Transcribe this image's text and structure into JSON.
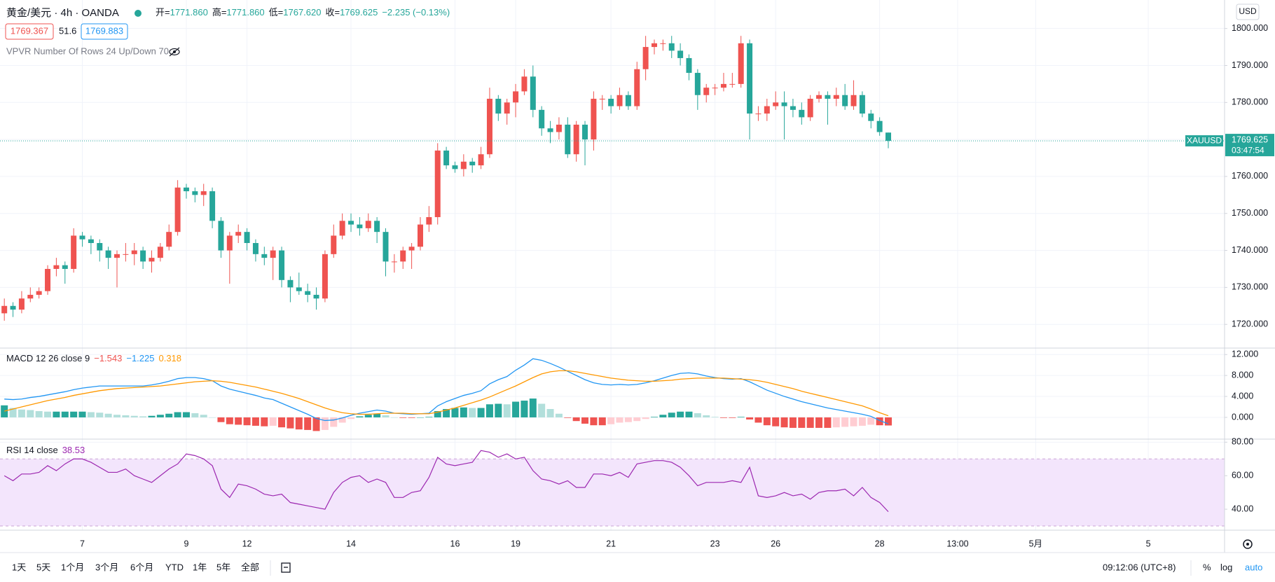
{
  "ui": {
    "symbol": "黄金/美元 · 4h · OANDA",
    "ohlc_legend": [
      {
        "k": "开=",
        "v": "1771.860"
      },
      {
        "k": "高=",
        "v": "1771.860"
      },
      {
        "k": "低=",
        "v": "1767.620"
      },
      {
        "k": "收=",
        "v": "1769.625"
      }
    ],
    "change": "−2.235 (−0.13%)",
    "bid": "1769.367",
    "spread": "51.6",
    "ask": "1769.883",
    "vpvr": "VPVR Number Of Rows 24 Up/Down 70",
    "currency": "USD",
    "ticker": "XAUUSD",
    "countdown": "03:47:54",
    "ranges": [
      "1天",
      "5天",
      "1个月",
      "3个月",
      "6个月",
      "YTD",
      "1年",
      "5年",
      "全部"
    ],
    "clock": "09:12:06 (UTC+8)",
    "percent": "%",
    "log": "log",
    "auto": "auto"
  },
  "chart_data": [
    {
      "type": "candlestick",
      "up_color": "#ef5350",
      "down_color": "#26a69a",
      "xlim": [
        -0.5,
        140.8
      ],
      "xticks": [
        {
          "value": 9,
          "label": "7"
        },
        {
          "value": 21,
          "label": "9"
        },
        {
          "value": 28,
          "label": "12"
        },
        {
          "value": 40,
          "label": "14"
        },
        {
          "value": 52,
          "label": "16"
        },
        {
          "value": 59,
          "label": "19"
        },
        {
          "value": 70,
          "label": "21"
        },
        {
          "value": 82,
          "label": "23"
        },
        {
          "value": 89,
          "label": "26"
        },
        {
          "value": 101,
          "label": "28"
        },
        {
          "value": 110,
          "label": "13:00"
        },
        {
          "value": 119,
          "label": "5月"
        },
        {
          "value": 132,
          "label": "5"
        }
      ],
      "ylim": [
        1713.6,
        1807.7
      ],
      "yticks": [
        {
          "value": 1720,
          "label": "1720.000"
        },
        {
          "value": 1730,
          "label": "1730.000"
        },
        {
          "value": 1740,
          "label": "1740.000"
        },
        {
          "value": 1750,
          "label": "1750.000"
        },
        {
          "value": 1760,
          "label": "1760.000"
        },
        {
          "value": 1770,
          "label": "1770.000"
        },
        {
          "value": 1780,
          "label": "1780.000"
        },
        {
          "value": 1790,
          "label": "1790.000"
        },
        {
          "value": 1800,
          "label": "1800.000"
        }
      ],
      "grid": true,
      "ohlc": [
        [
          1723,
          1727,
          1721,
          1725
        ],
        [
          1725,
          1726,
          1722,
          1724
        ],
        [
          1724,
          1729,
          1723,
          1727
        ],
        [
          1727,
          1730,
          1726,
          1728
        ],
        [
          1728,
          1730,
          1727,
          1729
        ],
        [
          1729,
          1736,
          1728,
          1735
        ],
        [
          1735,
          1738,
          1733,
          1736
        ],
        [
          1736,
          1737,
          1731,
          1735
        ],
        [
          1735,
          1746,
          1734,
          1744
        ],
        [
          1744,
          1745,
          1741,
          1743
        ],
        [
          1743,
          1744,
          1739,
          1742
        ],
        [
          1742,
          1743,
          1737,
          1740
        ],
        [
          1740,
          1741,
          1735,
          1738
        ],
        [
          1738,
          1740,
          1730,
          1739
        ],
        [
          1739,
          1742,
          1737,
          1739
        ],
        [
          1739,
          1742,
          1736,
          1740
        ],
        [
          1740,
          1741,
          1735,
          1737
        ],
        [
          1737,
          1740,
          1734,
          1738
        ],
        [
          1738,
          1742,
          1737,
          1741
        ],
        [
          1741,
          1747,
          1740,
          1745
        ],
        [
          1745,
          1759,
          1744,
          1757
        ],
        [
          1757,
          1758,
          1754,
          1756
        ],
        [
          1756,
          1757,
          1753,
          1755
        ],
        [
          1755,
          1758,
          1752,
          1756
        ],
        [
          1756,
          1757,
          1746,
          1748
        ],
        [
          1748,
          1749,
          1738,
          1740
        ],
        [
          1740,
          1745,
          1731,
          1744
        ],
        [
          1744,
          1747,
          1742,
          1745
        ],
        [
          1745,
          1746,
          1740,
          1742
        ],
        [
          1742,
          1743,
          1737,
          1739
        ],
        [
          1739,
          1741,
          1736,
          1738
        ],
        [
          1738,
          1741,
          1732,
          1740
        ],
        [
          1740,
          1741,
          1730,
          1732
        ],
        [
          1732,
          1733,
          1726,
          1730
        ],
        [
          1730,
          1734,
          1728,
          1729
        ],
        [
          1729,
          1731,
          1726,
          1728
        ],
        [
          1728,
          1730,
          1724,
          1727
        ],
        [
          1727,
          1740,
          1726,
          1739
        ],
        [
          1739,
          1747,
          1738,
          1744
        ],
        [
          1744,
          1750,
          1743,
          1748
        ],
        [
          1748,
          1750,
          1745,
          1747
        ],
        [
          1747,
          1749,
          1744,
          1746
        ],
        [
          1746,
          1750,
          1745,
          1748
        ],
        [
          1748,
          1749,
          1742,
          1745
        ],
        [
          1745,
          1746,
          1733,
          1737
        ],
        [
          1737,
          1739,
          1734,
          1737
        ],
        [
          1737,
          1741,
          1735,
          1740
        ],
        [
          1740,
          1742,
          1735,
          1741
        ],
        [
          1741,
          1749,
          1740,
          1747
        ],
        [
          1747,
          1752,
          1745,
          1749
        ],
        [
          1749,
          1769,
          1747,
          1767
        ],
        [
          1767,
          1768,
          1762,
          1763
        ],
        [
          1763,
          1764,
          1761,
          1762
        ],
        [
          1762,
          1766,
          1760,
          1764
        ],
        [
          1764,
          1765,
          1761,
          1763
        ],
        [
          1763,
          1768,
          1762,
          1766
        ],
        [
          1766,
          1784,
          1765,
          1781
        ],
        [
          1781,
          1782,
          1775,
          1777
        ],
        [
          1777,
          1781,
          1774,
          1780
        ],
        [
          1780,
          1785,
          1776,
          1783
        ],
        [
          1783,
          1789,
          1782,
          1787
        ],
        [
          1787,
          1790,
          1776,
          1778
        ],
        [
          1778,
          1779,
          1771,
          1773
        ],
        [
          1773,
          1775,
          1769,
          1772
        ],
        [
          1772,
          1776,
          1770,
          1774
        ],
        [
          1774,
          1776,
          1765,
          1766
        ],
        [
          1766,
          1775,
          1764,
          1774
        ],
        [
          1774,
          1775,
          1763,
          1770
        ],
        [
          1770,
          1783,
          1767,
          1781
        ],
        [
          1781,
          1782,
          1778,
          1781
        ],
        [
          1781,
          1782,
          1777,
          1779
        ],
        [
          1779,
          1784,
          1778,
          1782
        ],
        [
          1782,
          1783,
          1778,
          1779
        ],
        [
          1779,
          1791,
          1778,
          1789
        ],
        [
          1789,
          1798,
          1786,
          1795
        ],
        [
          1795,
          1797,
          1793,
          1796
        ],
        [
          1796,
          1797,
          1794,
          1796
        ],
        [
          1796,
          1798,
          1792,
          1794
        ],
        [
          1794,
          1796,
          1790,
          1792
        ],
        [
          1792,
          1793,
          1786,
          1788
        ],
        [
          1788,
          1789,
          1778,
          1782
        ],
        [
          1782,
          1785,
          1780,
          1784
        ],
        [
          1784,
          1785,
          1782,
          1784
        ],
        [
          1784,
          1788,
          1783,
          1785
        ],
        [
          1785,
          1788,
          1784,
          1785
        ],
        [
          1785,
          1798,
          1784,
          1796
        ],
        [
          1796,
          1797,
          1770,
          1777
        ],
        [
          1777,
          1779,
          1775,
          1777
        ],
        [
          1777,
          1781,
          1775,
          1779
        ],
        [
          1779,
          1783,
          1778,
          1780
        ],
        [
          1780,
          1783,
          1770,
          1779
        ],
        [
          1779,
          1781,
          1776,
          1778
        ],
        [
          1778,
          1780,
          1774,
          1776
        ],
        [
          1776,
          1782,
          1775,
          1781
        ],
        [
          1781,
          1783,
          1780,
          1782
        ],
        [
          1782,
          1783,
          1774,
          1781
        ],
        [
          1781,
          1784,
          1779,
          1782
        ],
        [
          1782,
          1785,
          1778,
          1779
        ],
        [
          1779,
          1786,
          1778,
          1782
        ],
        [
          1782,
          1783,
          1776,
          1777
        ],
        [
          1777,
          1778,
          1773,
          1775
        ],
        [
          1775,
          1776,
          1771,
          1772
        ],
        [
          1771.86,
          1771.86,
          1767.62,
          1769.625
        ]
      ]
    },
    {
      "type": "macd",
      "title": "MACD 12 26 close 9",
      "legend_values": [
        "−1.543",
        "−1.225",
        "0.318"
      ],
      "ylim": [
        -4.15,
        13.1
      ],
      "yticks": [
        {
          "value": 0,
          "label": "0.000"
        },
        {
          "value": 4,
          "label": "4.000"
        },
        {
          "value": 8,
          "label": "8.000"
        },
        {
          "value": 12,
          "label": "12.000"
        }
      ],
      "hist_colors": {
        "pos_up": "#26a69a",
        "pos_down": "#b2dfdb",
        "neg_down": "#ef5350",
        "neg_up": "#ffcdd2"
      },
      "histogram": [
        2.3,
        1.8,
        1.5,
        1.4,
        1.2,
        1.1,
        1.1,
        1.1,
        1.1,
        1.1,
        1.0,
        0.9,
        0.7,
        0.5,
        0.4,
        0.3,
        0.2,
        0.3,
        0.5,
        0.7,
        1.0,
        1.0,
        0.8,
        0.5,
        0.0,
        -0.9,
        -1.3,
        -1.4,
        -1.5,
        -1.6,
        -1.7,
        -1.6,
        -1.9,
        -2.1,
        -2.3,
        -2.4,
        -2.6,
        -2.4,
        -1.8,
        -1.0,
        -0.3,
        0.2,
        0.5,
        0.7,
        0.4,
        0.0,
        -0.1,
        -0.1,
        0.0,
        0.1,
        1.2,
        1.6,
        1.8,
        1.9,
        1.8,
        1.8,
        2.5,
        2.6,
        2.5,
        3.0,
        3.2,
        3.6,
        2.6,
        1.6,
        0.7,
        -0.1,
        -0.7,
        -1.2,
        -1.5,
        -1.5,
        -1.3,
        -1.0,
        -0.9,
        -0.7,
        -0.3,
        0.1,
        0.5,
        0.9,
        1.1,
        1.1,
        0.8,
        0.4,
        0.1,
        -0.1,
        -0.1,
        0.1,
        -0.4,
        -1.0,
        -1.5,
        -1.7,
        -1.9,
        -2.0,
        -2.0,
        -2.0,
        -2.0,
        -2.0,
        -1.9,
        -1.8,
        -1.7,
        -1.6,
        -1.4,
        -1.5,
        -1.543
      ],
      "series": [
        {
          "color": "#2196f3",
          "values": [
            3.5,
            3.4,
            3.5,
            3.8,
            4.0,
            4.3,
            4.6,
            4.9,
            5.3,
            5.6,
            5.8,
            6.0,
            6.0,
            6.0,
            6.0,
            6.0,
            6.0,
            6.2,
            6.5,
            6.9,
            7.4,
            7.6,
            7.6,
            7.4,
            7.0,
            6.0,
            5.4,
            5.0,
            4.6,
            4.2,
            3.7,
            3.4,
            2.7,
            2.0,
            1.3,
            0.6,
            -0.2,
            -0.6,
            -0.5,
            -0.1,
            0.4,
            0.8,
            1.1,
            1.4,
            1.2,
            0.8,
            0.7,
            0.6,
            0.7,
            0.8,
            2.2,
            3.0,
            3.6,
            4.2,
            4.6,
            5.1,
            6.4,
            7.2,
            7.8,
            9.0,
            10.0,
            11.2,
            10.9,
            10.3,
            9.6,
            8.8,
            8.0,
            7.2,
            6.6,
            6.3,
            6.2,
            6.3,
            6.2,
            6.3,
            6.6,
            7.0,
            7.5,
            8.0,
            8.4,
            8.5,
            8.3,
            7.9,
            7.6,
            7.4,
            7.3,
            7.4,
            6.8,
            6.0,
            5.2,
            4.6,
            4.0,
            3.5,
            3.0,
            2.6,
            2.2,
            1.8,
            1.5,
            1.2,
            0.9,
            0.6,
            0.2,
            -0.6,
            -1.225
          ]
        },
        {
          "color": "#ff9800",
          "values": [
            1.2,
            1.6,
            2.0,
            2.4,
            2.8,
            3.2,
            3.5,
            3.8,
            4.2,
            4.5,
            4.8,
            5.1,
            5.3,
            5.5,
            5.6,
            5.7,
            5.8,
            5.9,
            6.0,
            6.2,
            6.4,
            6.6,
            6.8,
            6.9,
            7.0,
            6.9,
            6.7,
            6.4,
            6.1,
            5.8,
            5.4,
            5.0,
            4.6,
            4.1,
            3.6,
            3.0,
            2.4,
            1.8,
            1.3,
            0.9,
            0.7,
            0.6,
            0.6,
            0.7,
            0.8,
            0.8,
            0.8,
            0.7,
            0.7,
            0.7,
            1.0,
            1.4,
            1.8,
            2.3,
            2.8,
            3.3,
            3.9,
            4.6,
            5.3,
            6.0,
            6.8,
            7.6,
            8.3,
            8.7,
            8.9,
            8.9,
            8.7,
            8.4,
            8.1,
            7.8,
            7.5,
            7.3,
            7.1,
            7.0,
            6.9,
            6.9,
            7.0,
            7.1,
            7.3,
            7.4,
            7.5,
            7.5,
            7.5,
            7.5,
            7.4,
            7.3,
            7.2,
            7.0,
            6.7,
            6.3,
            5.9,
            5.5,
            5.0,
            4.6,
            4.2,
            3.8,
            3.4,
            3.0,
            2.6,
            2.2,
            1.6,
            0.9,
            0.318
          ]
        }
      ]
    },
    {
      "type": "rsi",
      "title": "RSI 14 close",
      "color": "#9c27b0",
      "band": [
        30,
        70
      ],
      "band_color": "#f3e5fc",
      "ylim": [
        27.5,
        81.4
      ],
      "yticks": [
        {
          "value": 40,
          "label": "40.00"
        },
        {
          "value": 60,
          "label": "60.00"
        },
        {
          "value": 80,
          "label": "80.00"
        }
      ],
      "values": [
        60,
        57,
        61,
        61,
        62,
        66,
        63,
        67,
        70,
        70,
        68,
        65,
        62,
        62,
        64,
        60,
        58,
        56,
        60,
        64,
        67,
        73,
        72,
        70,
        66,
        52,
        47,
        55,
        54,
        52,
        49,
        48,
        49,
        44,
        43,
        42,
        41,
        40,
        50,
        56,
        59,
        60,
        56,
        58,
        56,
        47,
        47,
        50,
        51,
        59,
        71,
        67,
        66,
        67,
        68,
        75,
        74,
        71,
        73,
        70,
        71,
        63,
        58,
        57,
        55,
        57,
        53,
        53,
        61,
        61,
        60,
        62,
        59,
        67,
        68,
        69,
        69,
        68,
        65,
        60,
        54,
        56,
        56,
        56,
        57,
        56,
        65,
        48,
        47,
        48,
        50,
        48,
        49,
        46,
        50,
        51,
        51,
        52,
        48,
        53,
        47,
        44,
        38.53
      ]
    }
  ]
}
